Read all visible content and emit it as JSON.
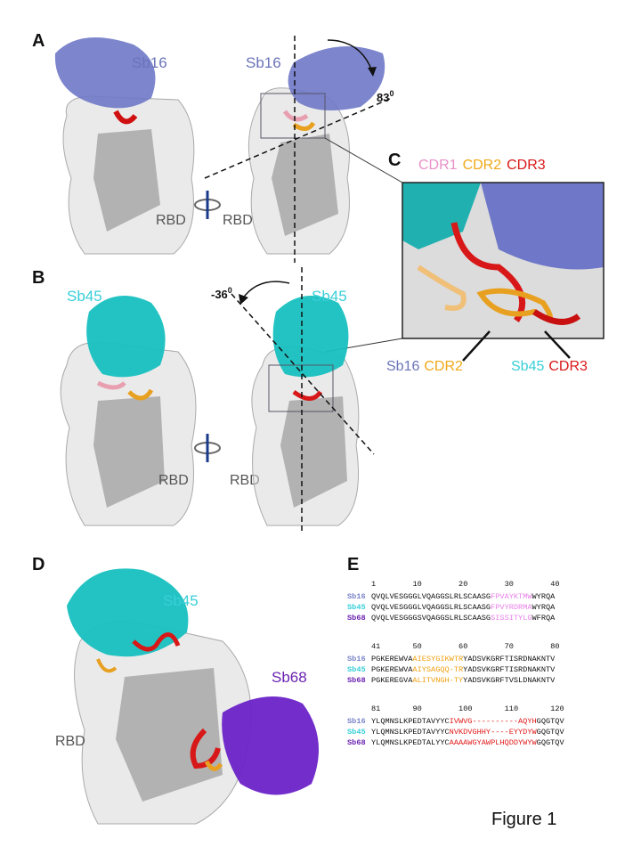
{
  "panel_a": {
    "label": "A",
    "nanobody_left": "Sb16",
    "nanobody_right": "Sb16",
    "angle": "83",
    "angle_sup": "0",
    "rbd_left": "RBD",
    "rbd_right": "RBD"
  },
  "panel_b": {
    "label": "B",
    "nanobody_left": "Sb45",
    "nanobody_right": "Sb45",
    "angle": "-36",
    "angle_sup": "0",
    "rbd_left": "RBD",
    "rbd_right": "RBD"
  },
  "panel_c": {
    "label": "C",
    "cdr_legend": [
      "CDR1",
      "CDR2",
      "CDR3"
    ],
    "callout_left": {
      "name": "Sb16",
      "region": "CDR2"
    },
    "callout_right": {
      "name": "Sb45",
      "region": "CDR3"
    }
  },
  "panel_d": {
    "label": "D",
    "nanobody_top": "Sb45",
    "nanobody_right": "Sb68",
    "rbd": "RBD"
  },
  "panel_e": {
    "label": "E",
    "blocks": [
      {
        "positions": [
          1,
          10,
          20,
          30,
          40
        ],
        "cdr_color": "#e880e8",
        "rows": [
          {
            "name": "Sb16",
            "color": "#7a84c8",
            "segments": [
              "QVQLVESGGGLVQAGGSLRLSCAASG",
              "FPVAYKTMW",
              "WYRQA"
            ]
          },
          {
            "name": "Sb45",
            "color": "#38cfd8",
            "segments": [
              "QVQLVESGGGLVQAGGSLRLSCAASG",
              "FPVYRDRMA",
              "WYRQA"
            ]
          },
          {
            "name": "Sb68",
            "color": "#6a22b0",
            "segments": [
              "QVQLVESGGGSVQAGGSLRLSCAASG",
              "SISSITYLG",
              "WFRQA"
            ]
          }
        ]
      },
      {
        "positions": [
          41,
          50,
          60,
          70,
          80
        ],
        "cdr_color": "#f0a010",
        "rows": [
          {
            "name": "Sb16",
            "color": "#7a84c8",
            "segments": [
              "PGKEREWVA",
              "AIESYGIKWTR",
              "YADSVKGRFTISRDNAKNTV"
            ]
          },
          {
            "name": "Sb45",
            "color": "#38cfd8",
            "segments": [
              "PGKEREWVA",
              "AIYSAGQQ-TR",
              "YADSVKGRFTISRDNAKNTV"
            ]
          },
          {
            "name": "Sb68",
            "color": "#6a22b0",
            "segments": [
              "PGKEREGVA",
              "ALITVNGH-TY",
              "YADSVKGRFTVSLDNAKNTV"
            ]
          }
        ]
      },
      {
        "positions": [
          81,
          90,
          100,
          110,
          120
        ],
        "cdr_color": "#e01818",
        "rows": [
          {
            "name": "Sb16",
            "color": "#7a84c8",
            "segments": [
              "YLQMNSLKPEDTAVYYC",
              "IVWVG----------AQYH",
              "GQGTQV"
            ]
          },
          {
            "name": "Sb45",
            "color": "#38cfd8",
            "segments": [
              "YLQMNSLKPEDTAVYYC",
              "NVKDVGHHY----EYYDYW",
              "GQGTQV"
            ]
          },
          {
            "name": "Sb68",
            "color": "#6a22b0",
            "segments": [
              "YLQMNSLKPEDTALYYC",
              "AAAAWGYAWPLHQDDYWYW",
              "GQGTQV"
            ]
          }
        ]
      }
    ]
  },
  "caption": "Figure 1"
}
